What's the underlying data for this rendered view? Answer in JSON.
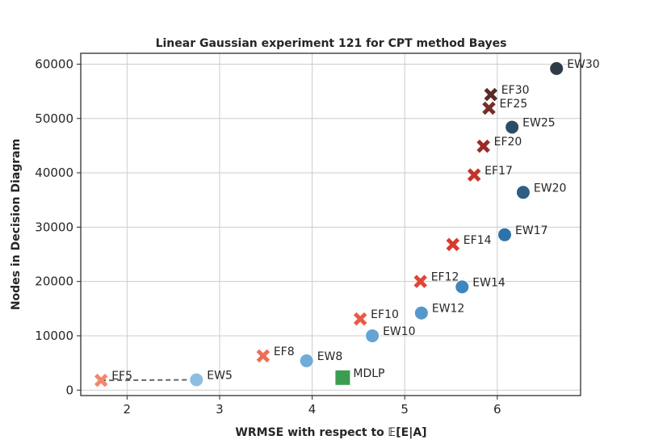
{
  "chart_data": {
    "type": "scatter",
    "title": "Linear Gaussian experiment 121 for CPT method Bayes",
    "xlabel": "WRMSE with respect to 𝔼[E|A]",
    "ylabel": "Nodes in Decision Diagram",
    "xlim": [
      1.5,
      6.9
    ],
    "ylim": [
      -1000,
      62000
    ],
    "xticks": [
      2,
      3,
      4,
      5,
      6
    ],
    "yticks": [
      0,
      10000,
      20000,
      30000,
      40000,
      50000,
      60000
    ],
    "grid": true,
    "legend": "none",
    "series": [
      {
        "marker": "x",
        "points": [
          {
            "label": "EF5",
            "x": 1.72,
            "y": 1800,
            "color": "#f4866c"
          },
          {
            "label": "EF8",
            "x": 3.47,
            "y": 6300,
            "color": "#ee6e57"
          },
          {
            "label": "EF10",
            "x": 4.52,
            "y": 13100,
            "color": "#ea5a48"
          },
          {
            "label": "EF12",
            "x": 5.17,
            "y": 20000,
            "color": "#e2453a"
          },
          {
            "label": "EF14",
            "x": 5.52,
            "y": 26800,
            "color": "#d93a2f"
          },
          {
            "label": "EF17",
            "x": 5.75,
            "y": 39600,
            "color": "#c53428"
          },
          {
            "label": "EF20",
            "x": 5.85,
            "y": 44900,
            "color": "#9a2c25"
          },
          {
            "label": "EF25",
            "x": 5.91,
            "y": 51900,
            "color": "#7a2d27"
          },
          {
            "label": "EF30",
            "x": 5.93,
            "y": 54400,
            "color": "#5c2a27"
          }
        ]
      },
      {
        "marker": "circle",
        "points": [
          {
            "label": "EW5",
            "x": 2.75,
            "y": 1900,
            "color": "#8ebde2"
          },
          {
            "label": "EW8",
            "x": 3.94,
            "y": 5400,
            "color": "#72abd6"
          },
          {
            "label": "EW10",
            "x": 4.65,
            "y": 10000,
            "color": "#66a4d3"
          },
          {
            "label": "EW12",
            "x": 5.18,
            "y": 14200,
            "color": "#5599cc"
          },
          {
            "label": "EW14",
            "x": 5.62,
            "y": 19000,
            "color": "#3d86c0"
          },
          {
            "label": "EW17",
            "x": 6.08,
            "y": 28600,
            "color": "#2e72aa"
          },
          {
            "label": "EW20",
            "x": 6.28,
            "y": 36400,
            "color": "#2e5e84"
          },
          {
            "label": "EW25",
            "x": 6.16,
            "y": 48400,
            "color": "#2d4c64"
          },
          {
            "label": "EW30",
            "x": 6.64,
            "y": 59200,
            "color": "#2f3b46"
          }
        ]
      },
      {
        "marker": "square",
        "points": [
          {
            "label": "MDLP",
            "x": 4.33,
            "y": 2300,
            "color": "#3a9d50"
          }
        ]
      }
    ],
    "connector": {
      "from": "EF5",
      "to": "EW5",
      "style": "dashed",
      "color": "#666666"
    }
  }
}
